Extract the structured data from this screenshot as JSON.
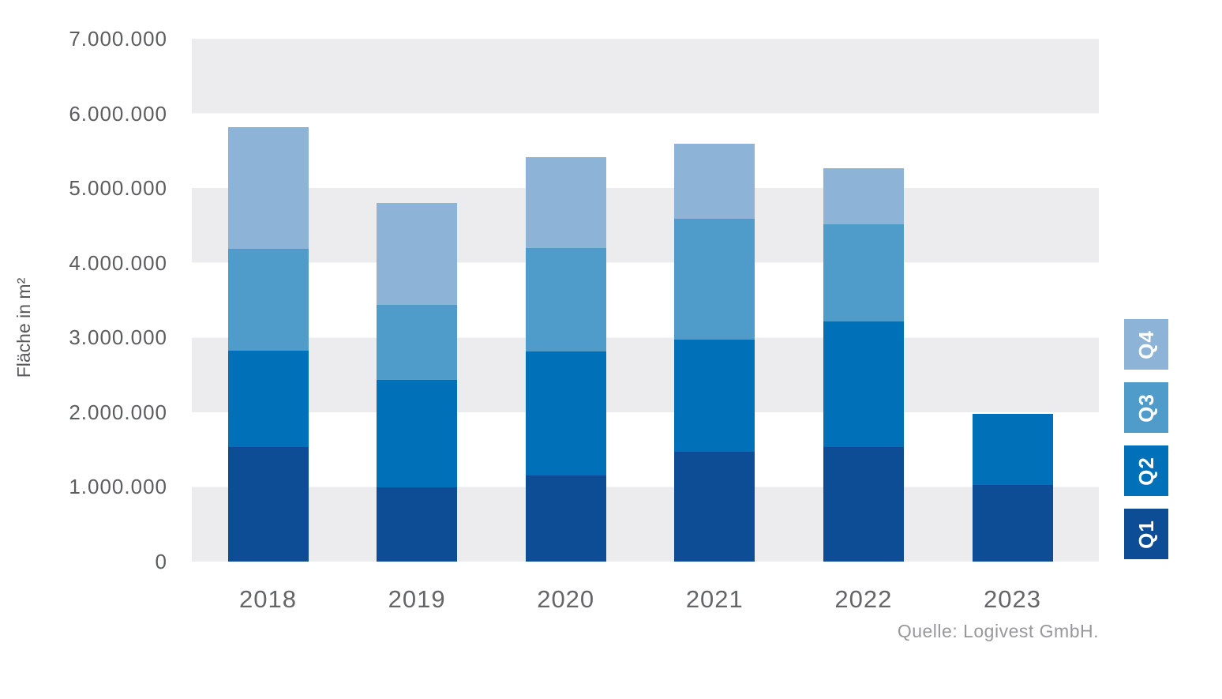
{
  "chart_data": {
    "type": "bar",
    "stacked": true,
    "title": "",
    "xlabel": "",
    "ylabel": "Fläche in m²",
    "unit": "m²",
    "categories": [
      "2018",
      "2019",
      "2020",
      "2021",
      "2022",
      "2023"
    ],
    "series": [
      {
        "name": "Q1",
        "color": "#0c4d95",
        "values": [
          1530000,
          990000,
          1150000,
          1470000,
          1530000,
          1030000
        ]
      },
      {
        "name": "Q2",
        "color": "#0070b9",
        "values": [
          1290000,
          1440000,
          1660000,
          1500000,
          1680000,
          950000
        ]
      },
      {
        "name": "Q3",
        "color": "#4f9bca",
        "values": [
          1370000,
          1010000,
          1390000,
          1620000,
          1310000,
          0
        ]
      },
      {
        "name": "Q4",
        "color": "#8db3d7",
        "values": [
          1630000,
          1360000,
          1210000,
          1000000,
          750000,
          0
        ]
      }
    ],
    "totals": [
      5820000,
      4800000,
      5410000,
      5590000,
      5270000,
      1980000
    ],
    "ylim": [
      0,
      7000000
    ],
    "y_tick_labels": [
      "7.000.000",
      "6.000.000",
      "5.000.000",
      "4.000.000",
      "3.000.000",
      "2.000.000",
      "1.000.000",
      "0"
    ],
    "grid": "alternating-horizontal-bands",
    "band_color": "#ececee",
    "legend": {
      "position": "right",
      "order_top_to_bottom": [
        "Q4",
        "Q3",
        "Q2",
        "Q1"
      ]
    },
    "source": "Quelle: Logivest GmbH."
  }
}
